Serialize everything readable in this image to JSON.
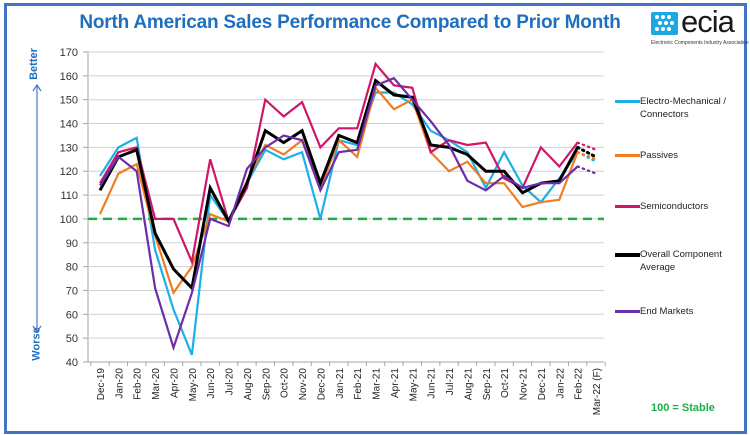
{
  "chart_data": {
    "type": "line",
    "title": "North American Sales Performance Compared to Prior Month",
    "xlabel": "",
    "ylabel": "",
    "ylim": [
      40,
      170
    ],
    "ytick_step": 10,
    "yticks": [
      "40",
      "50",
      "60",
      "70",
      "80",
      "90",
      "100",
      "110",
      "120",
      "130",
      "140",
      "150",
      "160",
      "170"
    ],
    "grid": true,
    "legend_position": "right",
    "categories": [
      "Dec-19",
      "Jan-20",
      "Feb-20",
      "Mar-20",
      "Apr-20",
      "May-20",
      "Jun-20",
      "Jul-20",
      "Aug-20",
      "Sep-20",
      "Oct-20",
      "Nov-20",
      "Dec-20",
      "Jan-21",
      "Feb-21",
      "Mar-21",
      "Apr-21",
      "May-21",
      "Jun-21",
      "Jul-21",
      "Aug-21",
      "Sep-21",
      "Oct-21",
      "Nov-21",
      "Dec-21",
      "Jan-22",
      "Feb-22",
      "Mar-22 (F)"
    ],
    "forecast_category": "Mar-22 (F)",
    "reference_line": {
      "value": 100,
      "label": "100 = Stable",
      "color": "#1fad4a",
      "style": "dashed"
    },
    "series": [
      {
        "name": "Electro-Mechanical / Connectors",
        "color": "#1cb0e8",
        "values": [
          118,
          130,
          134,
          87,
          62,
          43,
          110,
          99,
          115,
          129,
          125,
          128,
          100,
          133,
          131,
          153,
          153,
          148,
          137,
          133,
          128,
          113,
          128,
          114,
          107,
          117,
          128,
          124
        ]
      },
      {
        "name": "Passives",
        "color": "#f07d22",
        "values": [
          102,
          119,
          123,
          93,
          69,
          80,
          102,
          99,
          116,
          131,
          127,
          133,
          113,
          133,
          126,
          155,
          146,
          150,
          128,
          120,
          124,
          115,
          115,
          105,
          107,
          108,
          128,
          125
        ]
      },
      {
        "name": "Semiconductors",
        "color": "#d0166a",
        "values": [
          115,
          128,
          130,
          100,
          100,
          82,
          125,
          99,
          113,
          150,
          143,
          149,
          130,
          138,
          138,
          165,
          156,
          155,
          128,
          133,
          131,
          132,
          117,
          113,
          130,
          122,
          132,
          129
        ]
      },
      {
        "name": "Overall Component Average",
        "color": "#000000",
        "values": [
          112,
          126,
          129,
          94,
          79,
          71,
          113,
          99,
          115,
          137,
          132,
          137,
          115,
          135,
          132,
          158,
          152,
          151,
          131,
          130,
          127,
          120,
          120,
          111,
          115,
          116,
          130,
          126
        ]
      },
      {
        "name": "End Markets",
        "color": "#6a2fa8",
        "values": [
          114,
          126,
          120,
          71,
          46,
          69,
          100,
          97,
          121,
          130,
          135,
          133,
          112,
          128,
          129,
          156,
          159,
          150,
          141,
          131,
          116,
          112,
          118,
          113,
          115,
          115,
          122,
          119
        ]
      }
    ]
  },
  "side_labels": {
    "better": "Better",
    "worse": "Worse"
  },
  "logo": {
    "name": "ecia",
    "subtitle": "Electronic Components Industry Association"
  },
  "stable_note": "100 = Stable",
  "legend": [
    {
      "label": "Electro-Mechanical /\nConnectors",
      "color": "#1cb0e8"
    },
    {
      "label": "Passives",
      "color": "#f07d22"
    },
    {
      "label": "Semiconductors",
      "color": "#d0166a"
    },
    {
      "label": "Overall Component\nAverage",
      "color": "#000000"
    },
    {
      "label": "End Markets",
      "color": "#6a2fa8"
    }
  ]
}
